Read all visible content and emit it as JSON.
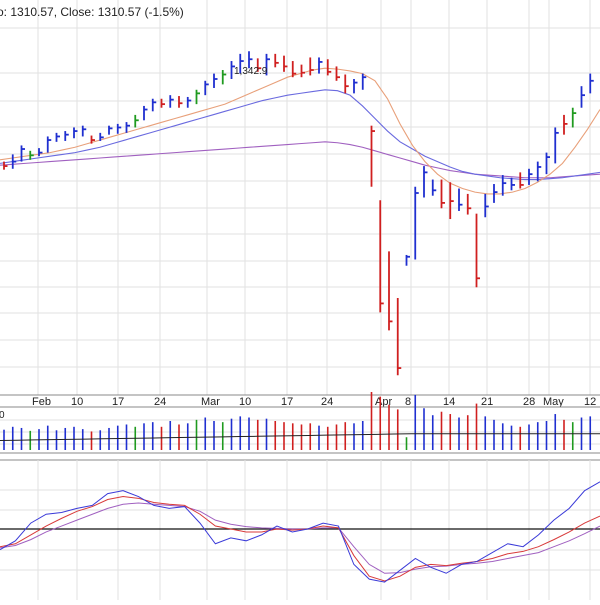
{
  "header": {
    "text": "o: 1310.57, Close: 1310.57 (-1.5%)"
  },
  "price_panel": {
    "high_label": "1,342.9"
  },
  "volume_panel": {
    "scale_label": "0"
  },
  "colors": {
    "up_bar": "#1f2fd0",
    "down_bar": "#d01f1f",
    "neutral_bar": "#1f9a1f",
    "ma_short": "#e8a07a",
    "ma_mid": "#6a6adf",
    "ma_long": "#a060c0",
    "grid": "#e2e2e2",
    "volume_avg": "#222222",
    "osc_blue": "#3a3ad8",
    "osc_red": "#d83a3a",
    "osc_zero": "#111111"
  },
  "chart_data": {
    "type": "ohlc",
    "x_ticks": [
      "Feb",
      "10",
      "17",
      "24",
      "Mar",
      "10",
      "17",
      "24",
      "Apr",
      "8",
      "14",
      "21",
      "28",
      "May",
      "12"
    ],
    "y_range": [
      960,
      1400
    ],
    "bars": [
      {
        "h": 1220,
        "l": 1211,
        "c": 1215,
        "dir": "down"
      },
      {
        "h": 1228,
        "l": 1212,
        "c": 1220,
        "dir": "up"
      },
      {
        "h": 1238,
        "l": 1220,
        "c": 1234,
        "dir": "up"
      },
      {
        "h": 1232,
        "l": 1222,
        "c": 1227,
        "dir": "neutral"
      },
      {
        "h": 1235,
        "l": 1226,
        "c": 1230,
        "dir": "up"
      },
      {
        "h": 1248,
        "l": 1230,
        "c": 1244,
        "dir": "up"
      },
      {
        "h": 1252,
        "l": 1242,
        "c": 1248,
        "dir": "up"
      },
      {
        "h": 1254,
        "l": 1243,
        "c": 1250,
        "dir": "up"
      },
      {
        "h": 1258,
        "l": 1246,
        "c": 1254,
        "dir": "up"
      },
      {
        "h": 1260,
        "l": 1248,
        "c": 1256,
        "dir": "up"
      },
      {
        "h": 1249,
        "l": 1240,
        "c": 1244,
        "dir": "down"
      },
      {
        "h": 1252,
        "l": 1243,
        "c": 1247,
        "dir": "up"
      },
      {
        "h": 1260,
        "l": 1250,
        "c": 1257,
        "dir": "up"
      },
      {
        "h": 1262,
        "l": 1251,
        "c": 1258,
        "dir": "up"
      },
      {
        "h": 1264,
        "l": 1252,
        "c": 1260,
        "dir": "up"
      },
      {
        "h": 1272,
        "l": 1258,
        "c": 1266,
        "dir": "neutral"
      },
      {
        "h": 1282,
        "l": 1266,
        "c": 1278,
        "dir": "up"
      },
      {
        "h": 1290,
        "l": 1276,
        "c": 1286,
        "dir": "up"
      },
      {
        "h": 1290,
        "l": 1280,
        "c": 1284,
        "dir": "down"
      },
      {
        "h": 1294,
        "l": 1280,
        "c": 1289,
        "dir": "up"
      },
      {
        "h": 1293,
        "l": 1280,
        "c": 1285,
        "dir": "down"
      },
      {
        "h": 1292,
        "l": 1280,
        "c": 1288,
        "dir": "up"
      },
      {
        "h": 1300,
        "l": 1284,
        "c": 1296,
        "dir": "neutral"
      },
      {
        "h": 1310,
        "l": 1294,
        "c": 1306,
        "dir": "up"
      },
      {
        "h": 1318,
        "l": 1302,
        "c": 1312,
        "dir": "up"
      },
      {
        "h": 1322,
        "l": 1306,
        "c": 1317,
        "dir": "neutral"
      },
      {
        "h": 1332,
        "l": 1312,
        "c": 1326,
        "dir": "up"
      },
      {
        "h": 1340,
        "l": 1318,
        "c": 1332,
        "dir": "up"
      },
      {
        "h": 1342.9,
        "l": 1324,
        "c": 1334,
        "dir": "up"
      },
      {
        "h": 1335,
        "l": 1320,
        "c": 1324,
        "dir": "down"
      },
      {
        "h": 1340,
        "l": 1316,
        "c": 1334,
        "dir": "up"
      },
      {
        "h": 1340,
        "l": 1325,
        "c": 1330,
        "dir": "down"
      },
      {
        "h": 1338,
        "l": 1320,
        "c": 1326,
        "dir": "down"
      },
      {
        "h": 1332,
        "l": 1314,
        "c": 1318,
        "dir": "down"
      },
      {
        "h": 1328,
        "l": 1314,
        "c": 1319,
        "dir": "down"
      },
      {
        "h": 1336,
        "l": 1316,
        "c": 1322,
        "dir": "down"
      },
      {
        "h": 1336,
        "l": 1318,
        "c": 1331,
        "dir": "up"
      },
      {
        "h": 1334,
        "l": 1316,
        "c": 1320,
        "dir": "down"
      },
      {
        "h": 1326,
        "l": 1310,
        "c": 1314,
        "dir": "down"
      },
      {
        "h": 1317,
        "l": 1296,
        "c": 1304,
        "dir": "down"
      },
      {
        "h": 1312,
        "l": 1296,
        "c": 1308,
        "dir": "up"
      },
      {
        "h": 1318,
        "l": 1300,
        "c": 1314,
        "dir": "up"
      },
      {
        "h": 1260,
        "l": 1192,
        "c": 1254,
        "dir": "down"
      },
      {
        "h": 1177,
        "l": 1052,
        "c": 1062,
        "dir": "down"
      },
      {
        "h": 1120,
        "l": 1032,
        "c": 1042,
        "dir": "down"
      },
      {
        "h": 1068,
        "l": 982,
        "c": 990,
        "dir": "down"
      },
      {
        "h": 1116,
        "l": 1104,
        "c": 1114,
        "dir": "up"
      },
      {
        "h": 1192,
        "l": 1111,
        "c": 1185,
        "dir": "up"
      },
      {
        "h": 1215,
        "l": 1180,
        "c": 1208,
        "dir": "up"
      },
      {
        "h": 1200,
        "l": 1182,
        "c": 1188,
        "dir": "up"
      },
      {
        "h": 1200,
        "l": 1168,
        "c": 1174,
        "dir": "down"
      },
      {
        "h": 1197,
        "l": 1156,
        "c": 1176,
        "dir": "down"
      },
      {
        "h": 1190,
        "l": 1165,
        "c": 1172,
        "dir": "up"
      },
      {
        "h": 1184,
        "l": 1161,
        "c": 1168,
        "dir": "down"
      },
      {
        "h": 1162,
        "l": 1080,
        "c": 1090,
        "dir": "down"
      },
      {
        "h": 1184,
        "l": 1158,
        "c": 1170,
        "dir": "up"
      },
      {
        "h": 1195,
        "l": 1174,
        "c": 1186,
        "dir": "up"
      },
      {
        "h": 1205,
        "l": 1182,
        "c": 1196,
        "dir": "up"
      },
      {
        "h": 1202,
        "l": 1188,
        "c": 1194,
        "dir": "up"
      },
      {
        "h": 1208,
        "l": 1190,
        "c": 1194,
        "dir": "down"
      },
      {
        "h": 1212,
        "l": 1194,
        "c": 1206,
        "dir": "up"
      },
      {
        "h": 1220,
        "l": 1198,
        "c": 1214,
        "dir": "up"
      },
      {
        "h": 1230,
        "l": 1206,
        "c": 1225,
        "dir": "up"
      },
      {
        "h": 1258,
        "l": 1218,
        "c": 1252,
        "dir": "up"
      },
      {
        "h": 1272,
        "l": 1250,
        "c": 1262,
        "dir": "down"
      },
      {
        "h": 1280,
        "l": 1258,
        "c": 1274,
        "dir": "neutral"
      },
      {
        "h": 1304,
        "l": 1280,
        "c": 1294,
        "dir": "up"
      },
      {
        "h": 1318,
        "l": 1296,
        "c": 1310,
        "dir": "up"
      }
    ],
    "ma_short": [
      1222,
      1224,
      1226,
      1228,
      1230,
      1233,
      1236,
      1240,
      1244,
      1248,
      1252,
      1256,
      1260,
      1264,
      1268,
      1272,
      1276,
      1280,
      1284,
      1290,
      1296,
      1302,
      1308,
      1314,
      1318,
      1322,
      1324,
      1323,
      1321,
      1318,
      1310,
      1290,
      1262,
      1238,
      1220,
      1206,
      1196,
      1190,
      1186,
      1184,
      1184,
      1186,
      1190,
      1197,
      1206,
      1218,
      1236,
      1256,
      1278
    ],
    "ma_mid": [
      1218,
      1220,
      1222,
      1224,
      1226,
      1228,
      1230,
      1233,
      1236,
      1240,
      1244,
      1248,
      1252,
      1256,
      1260,
      1264,
      1268,
      1272,
      1276,
      1280,
      1284,
      1288,
      1291,
      1294,
      1296,
      1298,
      1300,
      1299,
      1294,
      1282,
      1268,
      1254,
      1242,
      1234,
      1226,
      1220,
      1214,
      1209,
      1206,
      1204,
      1202,
      1201,
      1200,
      1200,
      1201,
      1202,
      1204,
      1206,
      1208
    ],
    "ma_long": [
      1216,
      1217,
      1218,
      1219,
      1220,
      1221,
      1222,
      1223,
      1224,
      1225,
      1226,
      1227,
      1228,
      1229,
      1230,
      1231,
      1232,
      1233,
      1234,
      1235,
      1236,
      1237,
      1238,
      1239,
      1240,
      1241,
      1242,
      1241,
      1239,
      1236,
      1232,
      1228,
      1224,
      1220,
      1216,
      1213,
      1210,
      1208,
      1206,
      1205,
      1204,
      1203,
      1202,
      1202,
      1202,
      1203,
      1204,
      1205,
      1206
    ],
    "volume": [
      {
        "v": 0.35,
        "dir": "up"
      },
      {
        "v": 0.4,
        "dir": "up"
      },
      {
        "v": 0.38,
        "dir": "up"
      },
      {
        "v": 0.33,
        "dir": "neutral"
      },
      {
        "v": 0.36,
        "dir": "up"
      },
      {
        "v": 0.42,
        "dir": "up"
      },
      {
        "v": 0.34,
        "dir": "up"
      },
      {
        "v": 0.38,
        "dir": "up"
      },
      {
        "v": 0.4,
        "dir": "up"
      },
      {
        "v": 0.36,
        "dir": "up"
      },
      {
        "v": 0.32,
        "dir": "down"
      },
      {
        "v": 0.34,
        "dir": "up"
      },
      {
        "v": 0.38,
        "dir": "up"
      },
      {
        "v": 0.42,
        "dir": "up"
      },
      {
        "v": 0.44,
        "dir": "up"
      },
      {
        "v": 0.4,
        "dir": "neutral"
      },
      {
        "v": 0.46,
        "dir": "up"
      },
      {
        "v": 0.48,
        "dir": "up"
      },
      {
        "v": 0.4,
        "dir": "down"
      },
      {
        "v": 0.5,
        "dir": "up"
      },
      {
        "v": 0.44,
        "dir": "down"
      },
      {
        "v": 0.46,
        "dir": "up"
      },
      {
        "v": 0.52,
        "dir": "neutral"
      },
      {
        "v": 0.56,
        "dir": "up"
      },
      {
        "v": 0.5,
        "dir": "up"
      },
      {
        "v": 0.48,
        "dir": "neutral"
      },
      {
        "v": 0.54,
        "dir": "up"
      },
      {
        "v": 0.58,
        "dir": "up"
      },
      {
        "v": 0.56,
        "dir": "up"
      },
      {
        "v": 0.52,
        "dir": "down"
      },
      {
        "v": 0.54,
        "dir": "up"
      },
      {
        "v": 0.5,
        "dir": "down"
      },
      {
        "v": 0.48,
        "dir": "down"
      },
      {
        "v": 0.46,
        "dir": "down"
      },
      {
        "v": 0.44,
        "dir": "down"
      },
      {
        "v": 0.46,
        "dir": "down"
      },
      {
        "v": 0.42,
        "dir": "up"
      },
      {
        "v": 0.4,
        "dir": "down"
      },
      {
        "v": 0.44,
        "dir": "down"
      },
      {
        "v": 0.48,
        "dir": "down"
      },
      {
        "v": 0.46,
        "dir": "up"
      },
      {
        "v": 0.5,
        "dir": "up"
      },
      {
        "v": 1.0,
        "dir": "down"
      },
      {
        "v": 0.92,
        "dir": "down"
      },
      {
        "v": 0.78,
        "dir": "down"
      },
      {
        "v": 0.7,
        "dir": "down"
      },
      {
        "v": 0.22,
        "dir": "neutral"
      },
      {
        "v": 0.95,
        "dir": "up"
      },
      {
        "v": 0.72,
        "dir": "up"
      },
      {
        "v": 0.6,
        "dir": "up"
      },
      {
        "v": 0.66,
        "dir": "down"
      },
      {
        "v": 0.62,
        "dir": "down"
      },
      {
        "v": 0.56,
        "dir": "up"
      },
      {
        "v": 0.6,
        "dir": "down"
      },
      {
        "v": 0.8,
        "dir": "down"
      },
      {
        "v": 0.58,
        "dir": "up"
      },
      {
        "v": 0.52,
        "dir": "up"
      },
      {
        "v": 0.46,
        "dir": "up"
      },
      {
        "v": 0.42,
        "dir": "up"
      },
      {
        "v": 0.4,
        "dir": "down"
      },
      {
        "v": 0.44,
        "dir": "up"
      },
      {
        "v": 0.48,
        "dir": "up"
      },
      {
        "v": 0.5,
        "dir": "up"
      },
      {
        "v": 0.62,
        "dir": "up"
      },
      {
        "v": 0.52,
        "dir": "down"
      },
      {
        "v": 0.48,
        "dir": "neutral"
      },
      {
        "v": 0.56,
        "dir": "up"
      },
      {
        "v": 0.58,
        "dir": "up"
      }
    ],
    "volume_avg": [
      0.34,
      0.35,
      0.36,
      0.37,
      0.38,
      0.39,
      0.4,
      0.41,
      0.42,
      0.43,
      0.44,
      0.45,
      0.46,
      0.47,
      0.48,
      0.49,
      0.5,
      0.51,
      0.52,
      0.53,
      0.54,
      0.55,
      0.56,
      0.57,
      0.58,
      0.58,
      0.58,
      0.58,
      0.58,
      0.58,
      0.58,
      0.58,
      0.58,
      0.58,
      0.58,
      0.58
    ],
    "oscillator": {
      "range": [
        -1,
        1
      ],
      "line_blue": [
        -0.35,
        -0.2,
        0.1,
        0.25,
        0.28,
        0.35,
        0.4,
        0.6,
        0.65,
        0.55,
        0.4,
        0.35,
        0.38,
        0.1,
        -0.25,
        -0.15,
        -0.2,
        -0.1,
        0.05,
        -0.05,
        0.0,
        0.1,
        0.05,
        -0.6,
        -0.85,
        -0.9,
        -0.7,
        -0.5,
        -0.65,
        -0.75,
        -0.6,
        -0.55,
        -0.4,
        -0.25,
        -0.3,
        -0.1,
        0.15,
        0.35,
        0.65,
        0.8
      ],
      "line_red": [
        -0.3,
        -0.25,
        -0.1,
        0.05,
        0.18,
        0.3,
        0.38,
        0.5,
        0.55,
        0.52,
        0.45,
        0.42,
        0.4,
        0.25,
        0.05,
        0.0,
        -0.05,
        -0.05,
        0.0,
        -0.02,
        0.0,
        0.05,
        0.02,
        -0.45,
        -0.8,
        -0.88,
        -0.8,
        -0.65,
        -0.6,
        -0.62,
        -0.58,
        -0.55,
        -0.5,
        -0.42,
        -0.38,
        -0.3,
        -0.18,
        -0.05,
        0.1,
        0.22
      ],
      "line_purple": [
        -0.32,
        -0.28,
        -0.18,
        -0.05,
        0.05,
        0.15,
        0.25,
        0.35,
        0.42,
        0.44,
        0.42,
        0.4,
        0.38,
        0.3,
        0.15,
        0.08,
        0.04,
        0.02,
        0.01,
        0.0,
        0.0,
        0.02,
        0.02,
        -0.3,
        -0.6,
        -0.75,
        -0.74,
        -0.68,
        -0.64,
        -0.63,
        -0.6,
        -0.58,
        -0.55,
        -0.5,
        -0.45,
        -0.4,
        -0.3,
        -0.2,
        -0.08,
        0.05
      ]
    }
  }
}
